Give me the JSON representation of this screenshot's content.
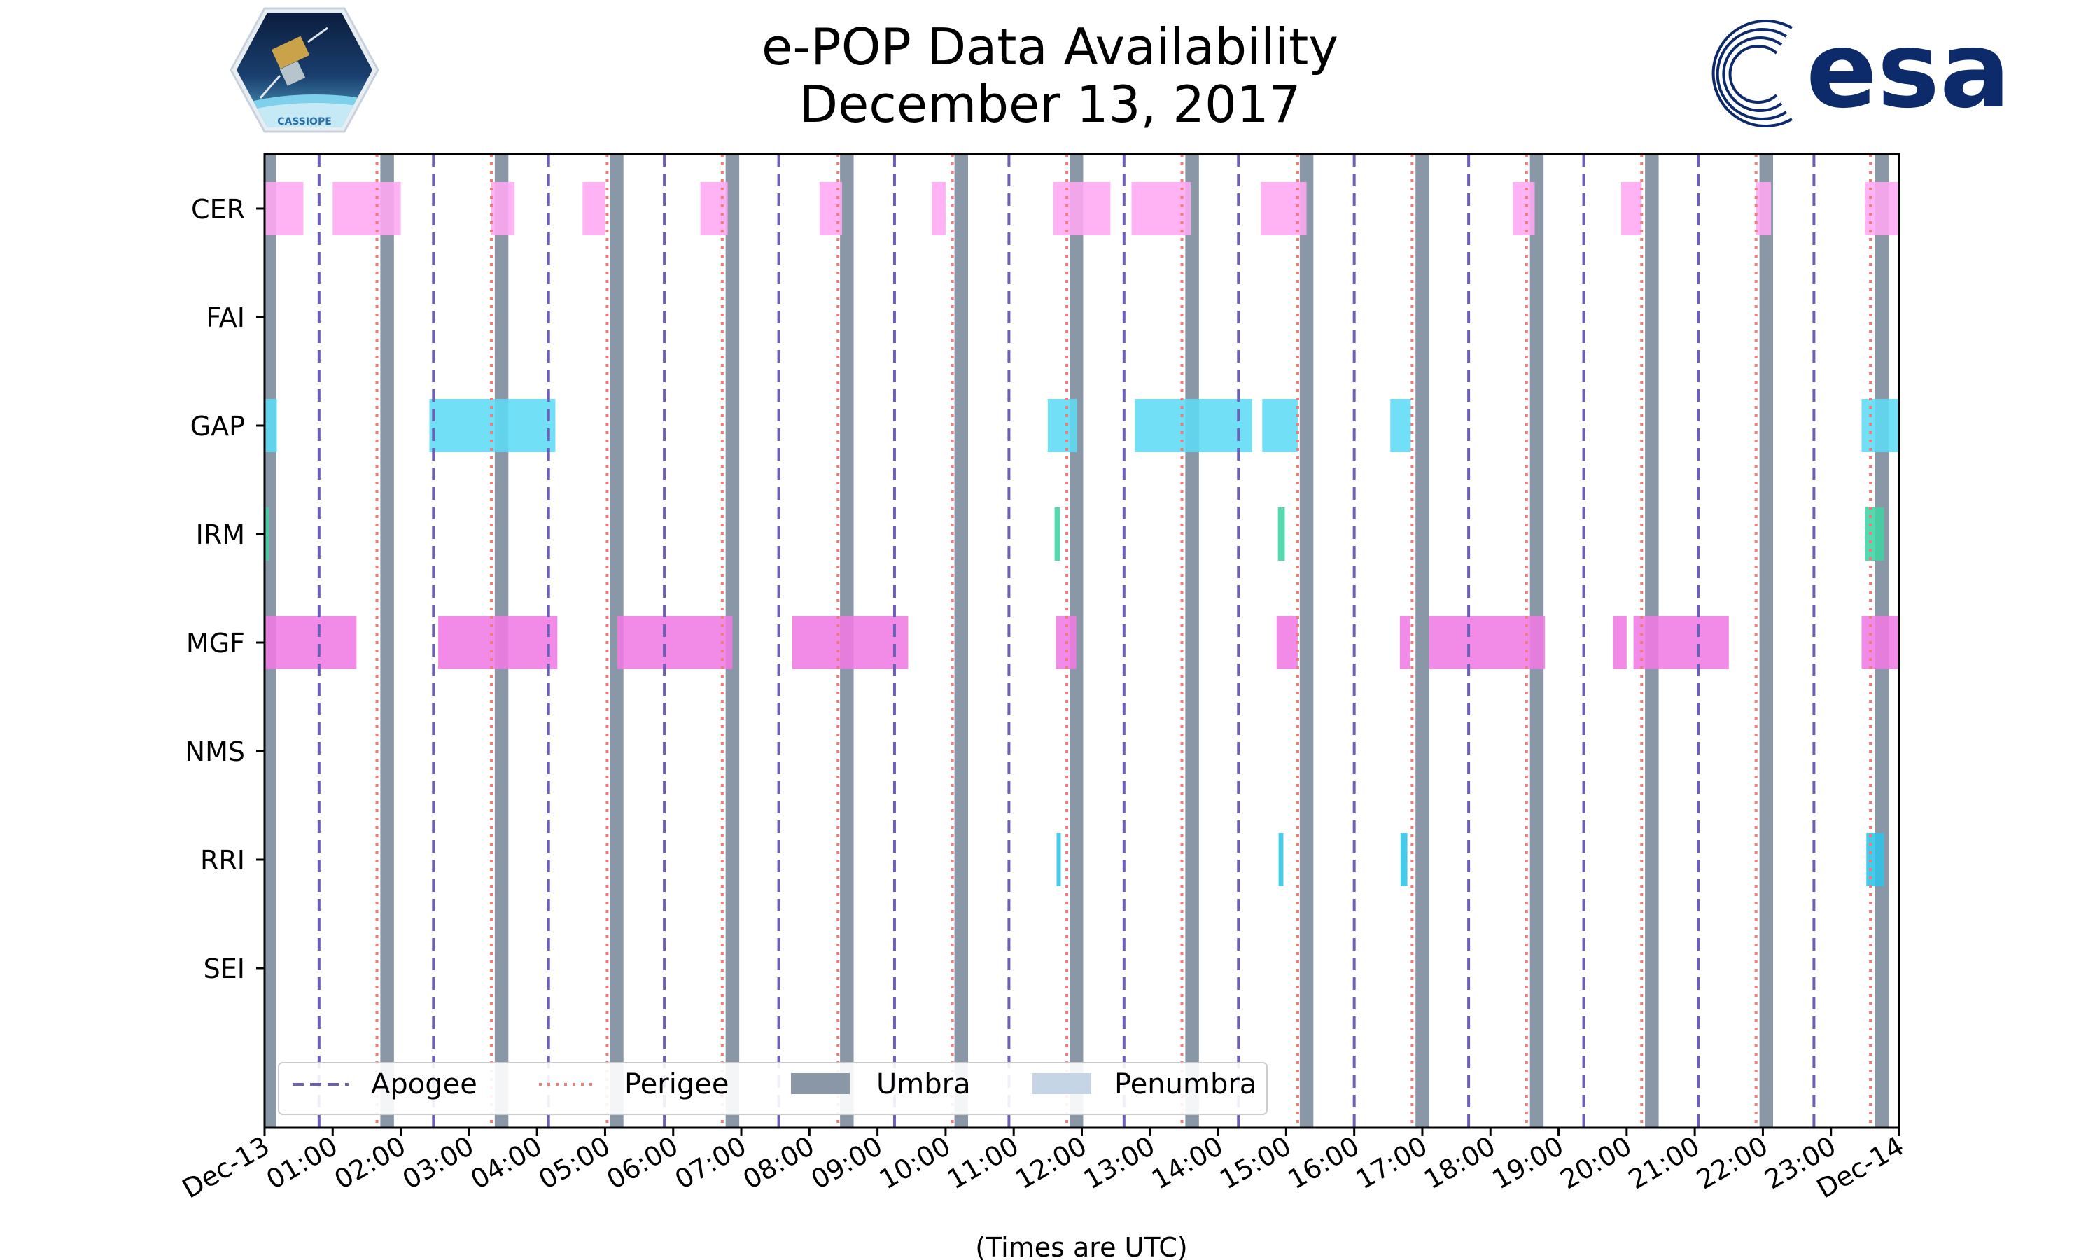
{
  "chart_data": {
    "type": "timeline",
    "title": "e-POP Data Availability",
    "subtitle": "December 13, 2017",
    "xlabel": "(Times are UTC)",
    "x_unit": "hours UTC",
    "xlim": [
      0,
      24
    ],
    "x_ticks": [
      {
        "value": 0,
        "label": "Dec-13"
      },
      {
        "value": 1,
        "label": "01:00"
      },
      {
        "value": 2,
        "label": "02:00"
      },
      {
        "value": 3,
        "label": "03:00"
      },
      {
        "value": 4,
        "label": "04:00"
      },
      {
        "value": 5,
        "label": "05:00"
      },
      {
        "value": 6,
        "label": "06:00"
      },
      {
        "value": 7,
        "label": "07:00"
      },
      {
        "value": 8,
        "label": "08:00"
      },
      {
        "value": 9,
        "label": "09:00"
      },
      {
        "value": 10,
        "label": "10:00"
      },
      {
        "value": 11,
        "label": "11:00"
      },
      {
        "value": 12,
        "label": "12:00"
      },
      {
        "value": 13,
        "label": "13:00"
      },
      {
        "value": 14,
        "label": "14:00"
      },
      {
        "value": 15,
        "label": "15:00"
      },
      {
        "value": 16,
        "label": "16:00"
      },
      {
        "value": 17,
        "label": "17:00"
      },
      {
        "value": 18,
        "label": "18:00"
      },
      {
        "value": 19,
        "label": "19:00"
      },
      {
        "value": 20,
        "label": "20:00"
      },
      {
        "value": 21,
        "label": "21:00"
      },
      {
        "value": 22,
        "label": "22:00"
      },
      {
        "value": 23,
        "label": "23:00"
      },
      {
        "value": 24,
        "label": "Dec-14"
      }
    ],
    "instruments": [
      "CER",
      "FAI",
      "GAP",
      "IRM",
      "MGF",
      "NMS",
      "RRI",
      "SEI"
    ],
    "colors": {
      "CER": "#ffa8f4",
      "GAP": "#5ddcf5",
      "IRM": "#3ed4a4",
      "MGF": "#f07ae4",
      "RRI": "#2fc4e8",
      "apogee": "#6b5fb8",
      "perigee": "#f07a78",
      "umbra": "#8a97a6",
      "penumbra": "#c6d5e6",
      "esa": "#0d2a6b"
    },
    "availability": {
      "CER": [
        [
          0.0,
          0.57
        ],
        [
          1.0,
          2.0
        ],
        [
          3.33,
          3.67
        ],
        [
          4.67,
          5.0
        ],
        [
          6.4,
          6.8
        ],
        [
          8.15,
          8.48
        ],
        [
          9.8,
          10.0
        ],
        [
          11.58,
          12.42
        ],
        [
          12.73,
          13.6
        ],
        [
          14.63,
          15.3
        ],
        [
          18.33,
          18.65
        ],
        [
          19.92,
          20.22
        ],
        [
          21.9,
          22.12
        ],
        [
          23.5,
          24.0
        ]
      ],
      "FAI": [],
      "GAP": [
        [
          0.0,
          0.18
        ],
        [
          2.42,
          4.27
        ],
        [
          11.5,
          11.93
        ],
        [
          12.78,
          14.5
        ],
        [
          14.65,
          15.17
        ],
        [
          16.53,
          16.83
        ],
        [
          23.45,
          24.0
        ]
      ],
      "IRM": [
        [
          0.0,
          0.05
        ],
        [
          11.6,
          11.68
        ],
        [
          14.88,
          14.98
        ],
        [
          23.5,
          23.78
        ]
      ],
      "MGF": [
        [
          0.0,
          1.35
        ],
        [
          2.55,
          4.3
        ],
        [
          5.18,
          6.87
        ],
        [
          7.75,
          9.45
        ],
        [
          11.62,
          11.92
        ],
        [
          14.86,
          15.17
        ],
        [
          16.67,
          16.82
        ],
        [
          17.1,
          18.8
        ],
        [
          19.8,
          20.0
        ],
        [
          20.1,
          21.5
        ],
        [
          23.45,
          24.0
        ]
      ],
      "NMS": [],
      "RRI": [
        [
          11.63,
          11.68
        ],
        [
          14.89,
          14.96
        ],
        [
          16.68,
          16.78
        ],
        [
          23.52,
          23.78
        ]
      ],
      "SEI": []
    },
    "apogee": [
      0.8,
      2.48,
      4.17,
      5.87,
      7.55,
      9.25,
      10.93,
      12.62,
      14.3,
      16.0,
      17.68,
      19.37,
      21.05,
      22.75
    ],
    "perigee": [
      1.65,
      3.33,
      5.03,
      6.72,
      8.42,
      10.1,
      11.78,
      13.47,
      15.17,
      16.85,
      18.53,
      20.22,
      21.9,
      23.58
    ],
    "umbra": [
      [
        0.0,
        0.17
      ],
      [
        1.7,
        1.9
      ],
      [
        3.38,
        3.58
      ],
      [
        5.07,
        5.27
      ],
      [
        6.77,
        6.97
      ],
      [
        8.45,
        8.65
      ],
      [
        10.13,
        10.33
      ],
      [
        11.82,
        12.02
      ],
      [
        13.52,
        13.72
      ],
      [
        15.2,
        15.4
      ],
      [
        16.9,
        17.1
      ],
      [
        18.58,
        18.78
      ],
      [
        20.27,
        20.47
      ],
      [
        21.95,
        22.15
      ],
      [
        23.65,
        23.85
      ]
    ],
    "legend": [
      {
        "key": "apogee",
        "label": "Apogee"
      },
      {
        "key": "perigee",
        "label": "Perigee"
      },
      {
        "key": "umbra",
        "label": "Umbra"
      },
      {
        "key": "penumbra",
        "label": "Penumbra"
      }
    ],
    "legend_position": "lower-left"
  },
  "logos": {
    "left": {
      "icon": "cassiope-satellite-logo",
      "text": "CASSIOPE"
    },
    "right": {
      "icon": "esa-logo",
      "text": "esa"
    }
  }
}
